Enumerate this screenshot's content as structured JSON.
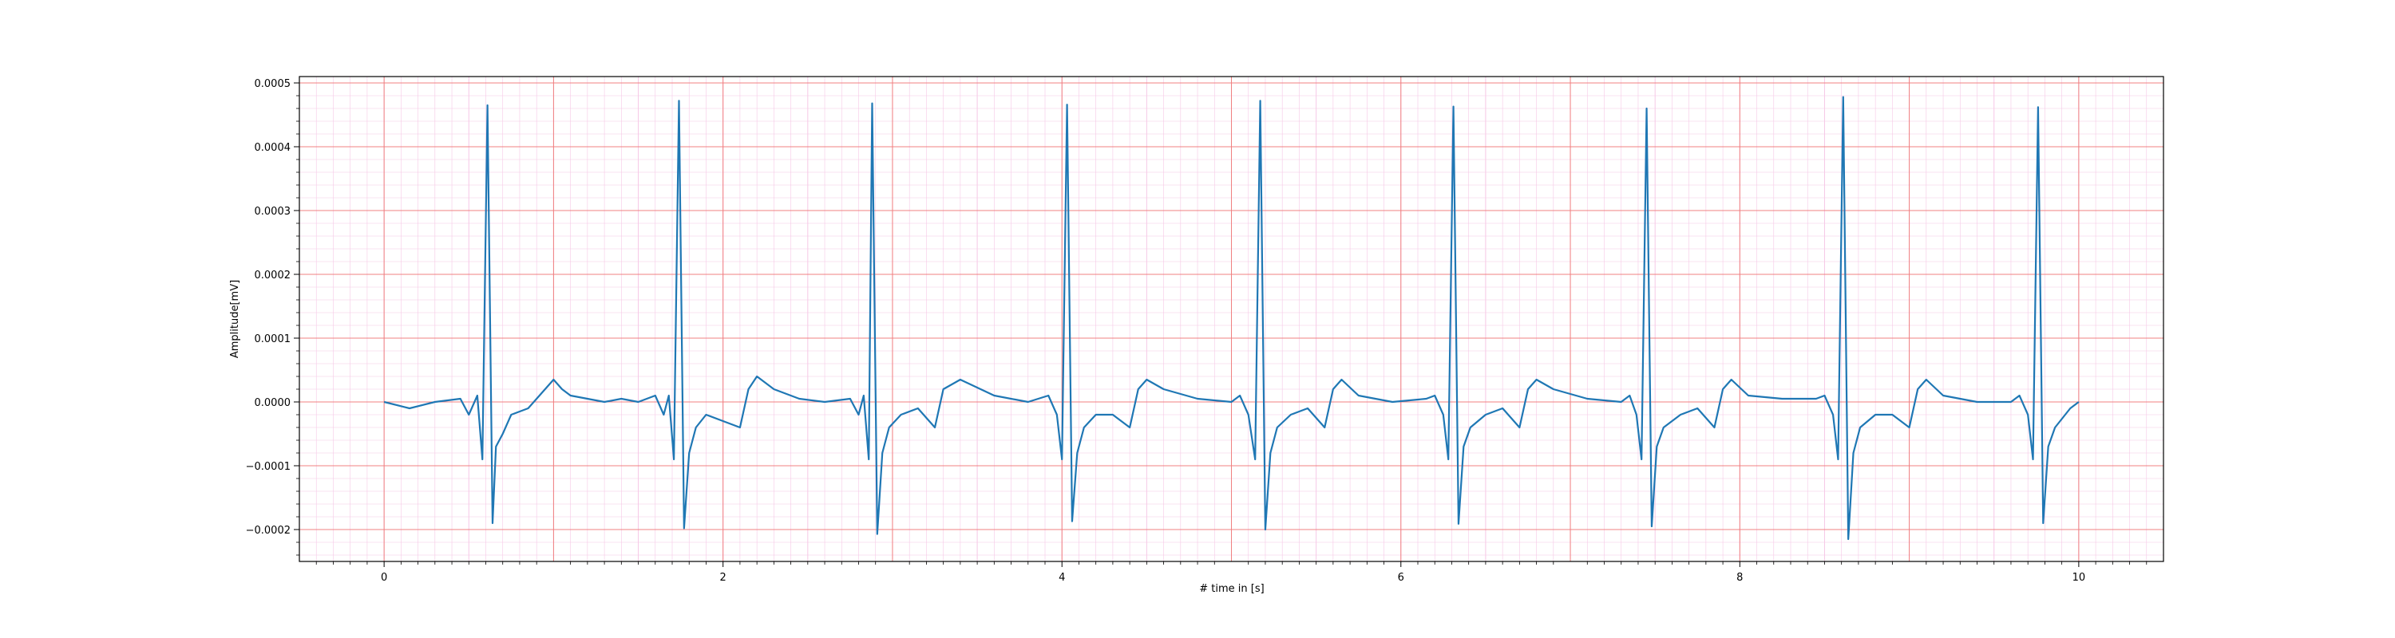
{
  "chart_data": {
    "type": "line",
    "title": "",
    "xlabel": "# time in [s]",
    "ylabel": "Amplitude[mV]",
    "xlim": [
      -0.5,
      10.5
    ],
    "ylim": [
      -0.00025,
      0.00051
    ],
    "x_ticks": [
      0,
      2,
      4,
      6,
      8,
      10
    ],
    "x_tick_labels": [
      "0",
      "2",
      "4",
      "6",
      "8",
      "10"
    ],
    "y_ticks": [
      -0.0002,
      -0.0001,
      0.0,
      0.0001,
      0.0002,
      0.0003,
      0.0004,
      0.0005
    ],
    "y_tick_labels": [
      "−0.0002",
      "−0.0001",
      "0.0000",
      "0.0001",
      "0.0002",
      "0.0003",
      "0.0004",
      "0.0005"
    ],
    "grid": {
      "major": true,
      "minor": true,
      "major_color": "#f08080",
      "minor_color": "#f6c8e6"
    },
    "line_color": "#1f77b4",
    "r_peak_times": [
      0.61,
      1.74,
      2.88,
      4.03,
      5.17,
      6.31,
      7.45,
      8.61,
      9.76
    ],
    "r_peak_values": [
      0.000465,
      0.000472,
      0.000468,
      0.000466,
      0.000472,
      0.000463,
      0.00046,
      0.000478,
      0.000462
    ],
    "s_wave_values": [
      -0.00019,
      -0.000198,
      -0.000207,
      -0.000187,
      -0.0002,
      -0.000191,
      -0.000195,
      -0.000215,
      -0.00019
    ],
    "series": [
      {
        "x": [
          0.0,
          0.15,
          0.3,
          0.45,
          0.5,
          0.55,
          0.58,
          0.61,
          0.64,
          0.66,
          0.7,
          0.75,
          0.85,
          0.95,
          1.0,
          1.05,
          1.1,
          1.2,
          1.3,
          1.4,
          1.5,
          1.6,
          1.65,
          1.68,
          1.71,
          1.74,
          1.77,
          1.8,
          1.84,
          1.9,
          2.0,
          2.1,
          2.15,
          2.2,
          2.3,
          2.45,
          2.6,
          2.75,
          2.8,
          2.83,
          2.86,
          2.88,
          2.91,
          2.94,
          2.98,
          3.05,
          3.15,
          3.25,
          3.3,
          3.4,
          3.6,
          3.8,
          3.92,
          3.97,
          4.0,
          4.03,
          4.06,
          4.09,
          4.13,
          4.2,
          4.3,
          4.4,
          4.45,
          4.5,
          4.6,
          4.8,
          5.0,
          5.05,
          5.1,
          5.14,
          5.17,
          5.2,
          5.23,
          5.27,
          5.35,
          5.45,
          5.55,
          5.6,
          5.65,
          5.75,
          5.95,
          6.15,
          6.2,
          6.25,
          6.28,
          6.31,
          6.34,
          6.37,
          6.41,
          6.5,
          6.6,
          6.7,
          6.75,
          6.8,
          6.9,
          7.1,
          7.3,
          7.35,
          7.39,
          7.42,
          7.45,
          7.48,
          7.51,
          7.55,
          7.65,
          7.75,
          7.85,
          7.9,
          7.95,
          8.05,
          8.25,
          8.45,
          8.5,
          8.55,
          8.58,
          8.61,
          8.64,
          8.67,
          8.71,
          8.8,
          8.9,
          9.0,
          9.05,
          9.1,
          9.2,
          9.4,
          9.6,
          9.65,
          9.7,
          9.73,
          9.76,
          9.79,
          9.82,
          9.86,
          9.95,
          10.0
        ],
        "y": [
          0.0,
          -1e-05,
          0.0,
          5e-06,
          -2e-05,
          1e-05,
          -9e-05,
          0.000465,
          -0.00019,
          -7e-05,
          -5e-05,
          -2e-05,
          -1e-05,
          2e-05,
          3.5e-05,
          2e-05,
          1e-05,
          5e-06,
          0.0,
          5e-06,
          0.0,
          1e-05,
          -2e-05,
          1e-05,
          -9e-05,
          0.000472,
          -0.000198,
          -8e-05,
          -4e-05,
          -2e-05,
          -3e-05,
          -4e-05,
          2e-05,
          4e-05,
          2e-05,
          5e-06,
          0.0,
          5e-06,
          -2e-05,
          1e-05,
          -9e-05,
          0.000468,
          -0.000207,
          -8e-05,
          -4e-05,
          -2e-05,
          -1e-05,
          -4e-05,
          2e-05,
          3.5e-05,
          1e-05,
          0.0,
          1e-05,
          -2e-05,
          -9e-05,
          0.000466,
          -0.000187,
          -8e-05,
          -4e-05,
          -2e-05,
          -2e-05,
          -4e-05,
          2e-05,
          3.5e-05,
          2e-05,
          5e-06,
          0.0,
          1e-05,
          -2e-05,
          -9e-05,
          0.000472,
          -0.0002,
          -8e-05,
          -4e-05,
          -2e-05,
          -1e-05,
          -4e-05,
          2e-05,
          3.5e-05,
          1e-05,
          0.0,
          5e-06,
          1e-05,
          -2e-05,
          -9e-05,
          0.000463,
          -0.000191,
          -7e-05,
          -4e-05,
          -2e-05,
          -1e-05,
          -4e-05,
          2e-05,
          3.5e-05,
          2e-05,
          5e-06,
          0.0,
          1e-05,
          -2e-05,
          -9e-05,
          0.00046,
          -0.000195,
          -7e-05,
          -4e-05,
          -2e-05,
          -1e-05,
          -4e-05,
          2e-05,
          3.5e-05,
          1e-05,
          5e-06,
          5e-06,
          1e-05,
          -2e-05,
          -9e-05,
          0.000478,
          -0.000215,
          -8e-05,
          -4e-05,
          -2e-05,
          -2e-05,
          -4e-05,
          2e-05,
          3.5e-05,
          1e-05,
          0.0,
          0.0,
          1e-05,
          -2e-05,
          -9e-05,
          0.000462,
          -0.00019,
          -7e-05,
          -4e-05,
          -1e-05,
          0.0
        ]
      }
    ]
  }
}
